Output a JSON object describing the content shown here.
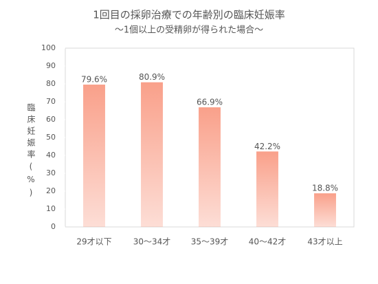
{
  "chart_data": {
    "type": "bar",
    "title": "1回目の採卵治療での年齢別の臨床妊娠率",
    "subtitle": "～1個以上の受精卵が得られた場合～",
    "y_label": "臨床妊娠率(%)",
    "categories": [
      "29才以下",
      "30～34才",
      "35～39才",
      "40～42才",
      "43才以上"
    ],
    "values": [
      79.6,
      80.9,
      66.9,
      42.2,
      18.8
    ],
    "value_labels": [
      "79.6%",
      "80.9%",
      "66.9%",
      "42.2%",
      "18.8%"
    ],
    "color": "#f9a08a",
    "ylim": [
      0,
      100
    ],
    "yticks": [
      0,
      10,
      20,
      30,
      40,
      50,
      60,
      70,
      80,
      90,
      100
    ]
  }
}
